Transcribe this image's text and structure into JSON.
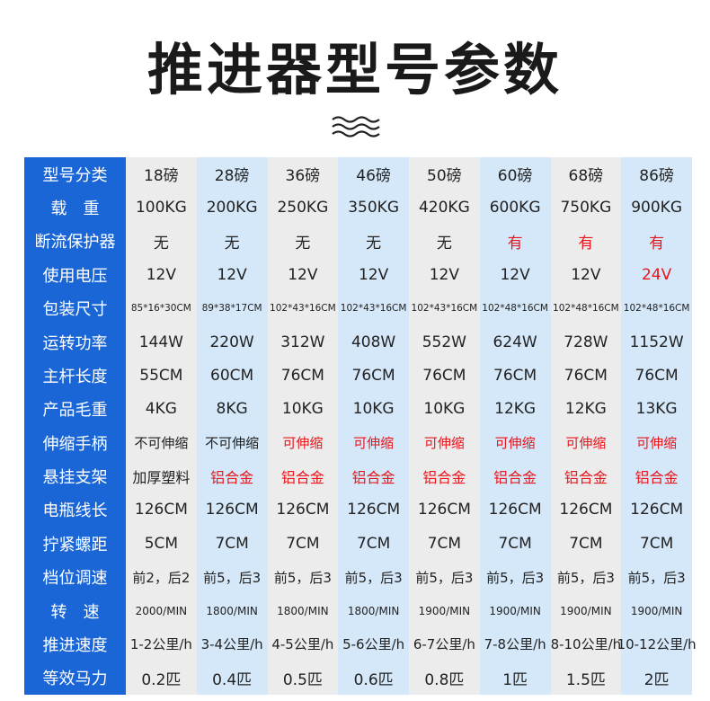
{
  "header": {
    "title": "推进器型号参数"
  },
  "table": {
    "rows": [
      [
        "型号分类",
        "18磅",
        "28磅",
        "36磅",
        "46磅",
        "50磅",
        "60磅",
        "68磅",
        "86磅"
      ],
      [
        "载　重",
        "100KG",
        "200KG",
        "250KG",
        "350KG",
        "420KG",
        "600KG",
        "750KG",
        "900KG"
      ],
      [
        "断流保护器",
        "无",
        "无",
        "无",
        "无",
        "无",
        "有",
        "有",
        "有"
      ],
      [
        "使用电压",
        "12V",
        "12V",
        "12V",
        "12V",
        "12V",
        "12V",
        "12V",
        "24V"
      ],
      [
        "包装尺寸",
        "85*16*30CM",
        "89*38*17CM",
        "102*43*16CM",
        "102*43*16CM",
        "102*43*16CM",
        "102*48*16CM",
        "102*48*16CM",
        "102*48*16CM"
      ],
      [
        "运转功率",
        "144W",
        "220W",
        "312W",
        "408W",
        "552W",
        "624W",
        "728W",
        "1152W"
      ],
      [
        "主杆长度",
        "55CM",
        "60CM",
        "76CM",
        "76CM",
        "76CM",
        "76CM",
        "76CM",
        "76CM"
      ],
      [
        "产品毛重",
        "4KG",
        "8KG",
        "10KG",
        "10KG",
        "10KG",
        "12KG",
        "12KG",
        "13KG"
      ],
      [
        "伸缩手柄",
        "不可伸缩",
        "不可伸缩",
        "可伸缩",
        "可伸缩",
        "可伸缩",
        "可伸缩",
        "可伸缩",
        "可伸缩"
      ],
      [
        "悬挂支架",
        "加厚塑料",
        "铝合金",
        "铝合金",
        "铝合金",
        "铝合金",
        "铝合金",
        "铝合金",
        "铝合金"
      ],
      [
        "电瓶线长",
        "126CM",
        "126CM",
        "126CM",
        "126CM",
        "126CM",
        "126CM",
        "126CM",
        "126CM"
      ],
      [
        "拧紧螺距",
        "5CM",
        "7CM",
        "7CM",
        "7CM",
        "7CM",
        "7CM",
        "7CM",
        "7CM"
      ],
      [
        "档位调速",
        "前2，后2",
        "前5，后3",
        "前5，后3",
        "前5，后3",
        "前5，后3",
        "前5，后3",
        "前5，后3",
        "前5，后3"
      ],
      [
        "转　速",
        "2000/MIN",
        "1800/MIN",
        "1800/MIN",
        "1800/MIN",
        "1900/MIN",
        "1900/MIN",
        "1900/MIN",
        "1900/MIN"
      ],
      [
        "推进速度",
        "1-2公里/h",
        "3-4公里/h",
        "4-5公里/h",
        "5-6公里/h",
        "6-7公里/h",
        "7-8公里/h",
        "8-10公里/h",
        "10-12公里/h"
      ],
      [
        "等效马力",
        "0.2匹",
        "0.4匹",
        "0.5匹",
        "0.6匹",
        "0.8匹",
        "1匹",
        "1.5匹",
        "2匹"
      ]
    ]
  }
}
